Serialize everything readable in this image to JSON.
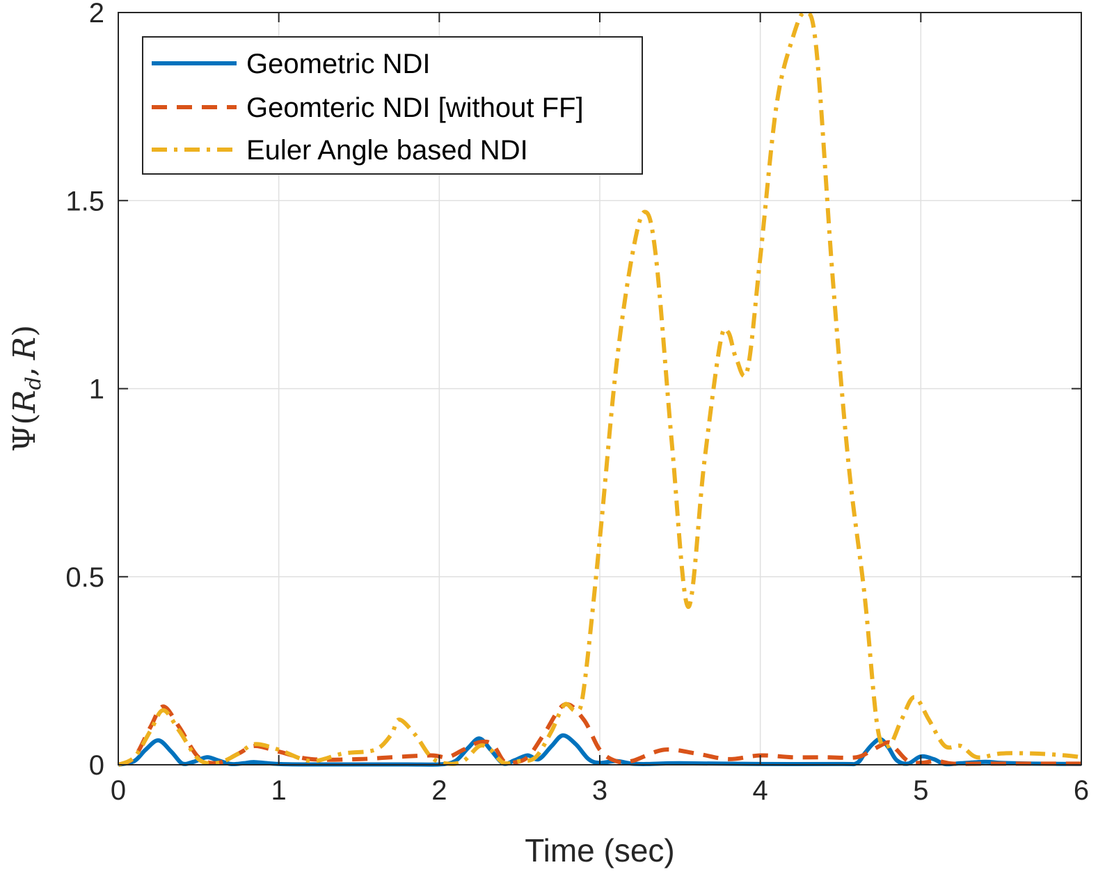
{
  "chart_data": {
    "type": "line",
    "title": "",
    "xlabel": "Time (sec)",
    "ylabel": "Ψ(R_d, R)",
    "ylabel_parts": {
      "psi": "Ψ",
      "open": "(",
      "R": "R",
      "sub": "d",
      "comma": ",",
      "R2": "R",
      "close": ")"
    },
    "xlim": [
      0,
      6
    ],
    "ylim": [
      0,
      2
    ],
    "xticks": [
      0,
      1,
      2,
      3,
      4,
      5,
      6
    ],
    "xtick_labels": [
      "0",
      "1",
      "2",
      "3",
      "4",
      "5",
      "6"
    ],
    "yticks": [
      0,
      0.5,
      1,
      1.5,
      2
    ],
    "ytick_labels": [
      "0",
      "0.5",
      "1",
      "1.5",
      "2"
    ],
    "grid": true,
    "legend_position": "top-left",
    "series": [
      {
        "name": "Geometric NDI",
        "color": "#0072BD",
        "style": "solid",
        "x": [
          0,
          0.1,
          0.17,
          0.25,
          0.33,
          0.4,
          0.47,
          0.55,
          0.62,
          0.7,
          0.78,
          0.85,
          1.0,
          1.2,
          1.5,
          1.8,
          2.0,
          2.1,
          2.18,
          2.25,
          2.32,
          2.4,
          2.47,
          2.55,
          2.62,
          2.7,
          2.77,
          2.85,
          2.93,
          3.0,
          3.1,
          3.2,
          3.3,
          3.5,
          4.0,
          4.5,
          4.6,
          4.65,
          4.7,
          4.75,
          4.8,
          4.85,
          4.92,
          5.0,
          5.08,
          5.15,
          5.25,
          5.4,
          5.5,
          5.7,
          6.0
        ],
        "values": [
          0,
          0.01,
          0.04,
          0.065,
          0.035,
          0.003,
          0.008,
          0.02,
          0.012,
          0.002,
          0.004,
          0.007,
          0.002,
          0.001,
          0.001,
          0.001,
          0.001,
          0.01,
          0.045,
          0.07,
          0.04,
          0.003,
          0.012,
          0.025,
          0.015,
          0.05,
          0.078,
          0.055,
          0.015,
          0.005,
          0.01,
          0.003,
          0.002,
          0.004,
          0.002,
          0.002,
          0.004,
          0.03,
          0.055,
          0.068,
          0.045,
          0.012,
          0.003,
          0.022,
          0.015,
          0.002,
          0.004,
          0.008,
          0.005,
          0.003,
          0.002
        ]
      },
      {
        "name": "Geomteric NDI [without FF]",
        "color": "#D95319",
        "style": "dashed",
        "x": [
          0,
          0.1,
          0.2,
          0.28,
          0.38,
          0.5,
          0.62,
          0.75,
          0.85,
          1.0,
          1.2,
          1.5,
          1.7,
          1.95,
          2.05,
          2.15,
          2.25,
          2.33,
          2.4,
          2.45,
          2.55,
          2.65,
          2.78,
          2.9,
          3.0,
          3.1,
          3.2,
          3.4,
          3.6,
          3.8,
          4.0,
          4.2,
          4.4,
          4.6,
          4.7,
          4.8,
          4.85,
          4.92,
          5.0,
          5.1,
          5.2,
          5.4,
          5.6,
          5.8,
          6.0
        ],
        "values": [
          0,
          0.02,
          0.1,
          0.155,
          0.1,
          0.02,
          0.005,
          0.03,
          0.05,
          0.035,
          0.015,
          0.015,
          0.02,
          0.025,
          0.02,
          0.04,
          0.06,
          0.055,
          0.01,
          0.005,
          0.02,
          0.08,
          0.16,
          0.12,
          0.04,
          0.01,
          0.01,
          0.04,
          0.03,
          0.015,
          0.025,
          0.02,
          0.02,
          0.02,
          0.04,
          0.06,
          0.04,
          0.01,
          0.005,
          0.01,
          0.003,
          0.003,
          0.003,
          0.003,
          0.003
        ]
      },
      {
        "name": "Euler Angle based NDI",
        "color": "#EDB120",
        "style": "dashdot",
        "x": [
          0,
          0.1,
          0.2,
          0.28,
          0.38,
          0.5,
          0.62,
          0.75,
          0.85,
          1.0,
          1.2,
          1.4,
          1.6,
          1.7,
          1.75,
          1.85,
          1.95,
          2.05,
          2.15,
          2.25,
          2.32,
          2.4,
          2.5,
          2.6,
          2.7,
          2.78,
          2.85,
          2.9,
          3.0,
          3.1,
          3.2,
          3.28,
          3.35,
          3.45,
          3.55,
          3.65,
          3.75,
          3.8,
          3.85,
          3.92,
          4.0,
          4.1,
          4.2,
          4.28,
          4.35,
          4.45,
          4.55,
          4.65,
          4.73,
          4.8,
          4.88,
          4.96,
          5.05,
          5.15,
          5.25,
          5.35,
          5.5,
          5.7,
          5.9,
          6.0
        ],
        "values": [
          0,
          0.02,
          0.09,
          0.145,
          0.09,
          0.015,
          0.005,
          0.03,
          0.055,
          0.04,
          0.01,
          0.03,
          0.04,
          0.08,
          0.12,
          0.08,
          0.02,
          0.003,
          0.01,
          0.05,
          0.04,
          0.005,
          0.01,
          0.02,
          0.09,
          0.16,
          0.145,
          0.2,
          0.6,
          1.05,
          1.35,
          1.47,
          1.35,
          0.85,
          0.42,
          0.8,
          1.12,
          1.15,
          1.08,
          1.05,
          1.35,
          1.75,
          1.93,
          2.0,
          1.9,
          1.3,
          0.8,
          0.45,
          0.1,
          0.05,
          0.12,
          0.18,
          0.12,
          0.05,
          0.05,
          0.02,
          0.03,
          0.03,
          0.025,
          0.02
        ]
      }
    ]
  }
}
